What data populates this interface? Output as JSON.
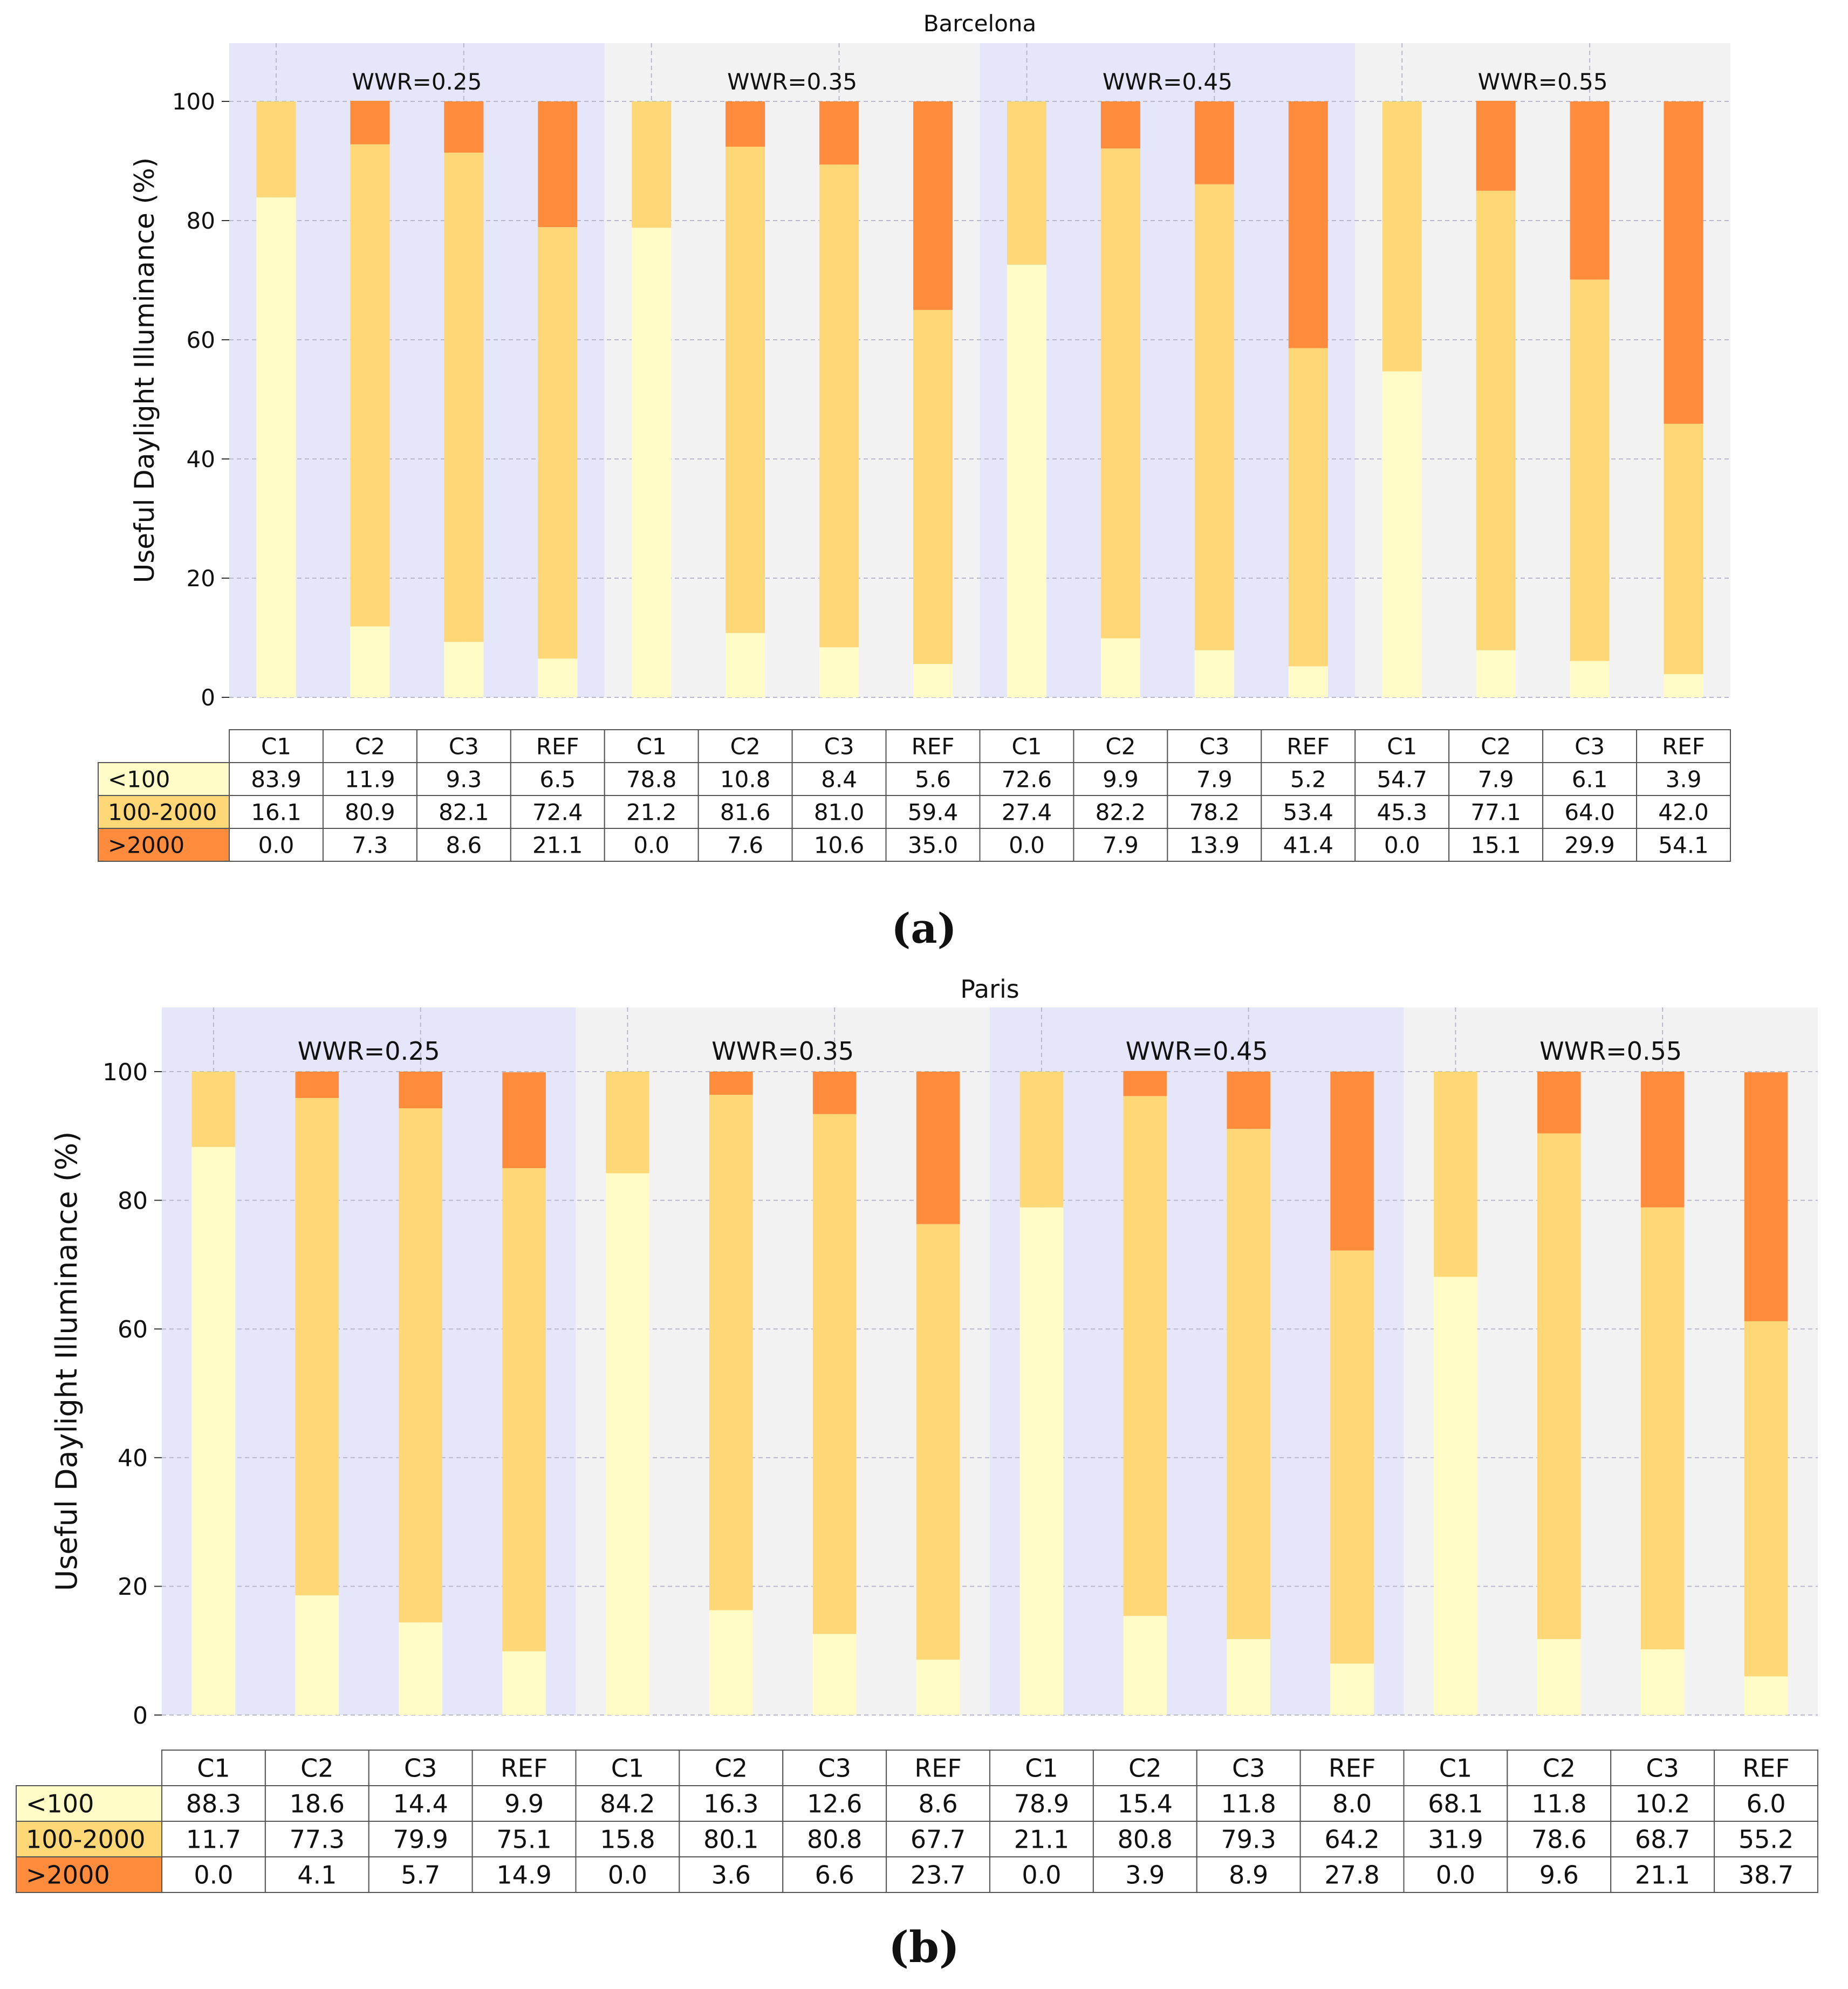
{
  "chart_data": [
    {
      "type": "bar",
      "stacked": true,
      "title": "Barcelona",
      "caption": "(a)",
      "ylabel": "Useful Daylight Illuminance (%)",
      "ylim": [
        0,
        110
      ],
      "yticks": [
        "0",
        "20",
        "40",
        "60",
        "80",
        "100"
      ],
      "grid": true,
      "groups": [
        "WWR=0.25",
        "WWR=0.35",
        "WWR=0.45",
        "WWR=0.55"
      ],
      "categories": [
        "C1",
        "C2",
        "C3",
        "REF",
        "C1",
        "C2",
        "C3",
        "REF",
        "C1",
        "C2",
        "C3",
        "REF",
        "C1",
        "C2",
        "C3",
        "REF"
      ],
      "series": [
        {
          "name": "<100",
          "color": "#fffcc8",
          "values": [
            83.9,
            11.9,
            9.3,
            6.5,
            78.8,
            10.8,
            8.4,
            5.6,
            72.6,
            9.9,
            7.9,
            5.2,
            54.7,
            7.9,
            6.1,
            3.9
          ],
          "labels": [
            "83.9",
            "11.9",
            "9.3",
            "6.5",
            "78.8",
            "10.8",
            "8.4",
            "5.6",
            "72.6",
            "9.9",
            "7.9",
            "5.2",
            "54.7",
            "7.9",
            "6.1",
            "3.9"
          ]
        },
        {
          "name": "100-2000",
          "color": "#fed776",
          "values": [
            16.1,
            80.9,
            82.1,
            72.4,
            21.2,
            81.6,
            81.0,
            59.4,
            27.4,
            82.2,
            78.2,
            53.4,
            45.3,
            77.1,
            64.0,
            42.0
          ],
          "labels": [
            "16.1",
            "80.9",
            "82.1",
            "72.4",
            "21.2",
            "81.6",
            "81.0",
            "59.4",
            "27.4",
            "82.2",
            "78.2",
            "53.4",
            "45.3",
            "77.1",
            "64.0",
            "42.0"
          ]
        },
        {
          "name": ">2000",
          "color": "#fe8c3c",
          "values": [
            0.0,
            7.3,
            8.6,
            21.1,
            0.0,
            7.6,
            10.6,
            35.0,
            0.0,
            7.9,
            13.9,
            41.4,
            0.0,
            15.1,
            29.9,
            54.1
          ],
          "labels": [
            "0.0",
            "7.3",
            "8.6",
            "21.1",
            "0.0",
            "7.6",
            "10.6",
            "35.0",
            "0.0",
            "7.9",
            "13.9",
            "41.4",
            "0.0",
            "15.1",
            "29.9",
            "54.1"
          ]
        }
      ]
    },
    {
      "type": "bar",
      "stacked": true,
      "title": "Paris",
      "caption": "(b)",
      "ylabel": "Useful Daylight Illuminance (%)",
      "ylim": [
        0,
        110
      ],
      "yticks": [
        "0",
        "20",
        "40",
        "60",
        "80",
        "100"
      ],
      "grid": true,
      "groups": [
        "WWR=0.25",
        "WWR=0.35",
        "WWR=0.45",
        "WWR=0.55"
      ],
      "categories": [
        "C1",
        "C2",
        "C3",
        "REF",
        "C1",
        "C2",
        "C3",
        "REF",
        "C1",
        "C2",
        "C3",
        "REF",
        "C1",
        "C2",
        "C3",
        "REF"
      ],
      "series": [
        {
          "name": "<100",
          "color": "#fffcc8",
          "values": [
            88.3,
            18.6,
            14.4,
            9.9,
            84.2,
            16.3,
            12.6,
            8.6,
            78.9,
            15.4,
            11.8,
            8.0,
            68.1,
            11.8,
            10.2,
            6.0
          ],
          "labels": [
            "88.3",
            "18.6",
            "14.4",
            "9.9",
            "84.2",
            "16.3",
            "12.6",
            "8.6",
            "78.9",
            "15.4",
            "11.8",
            "8.0",
            "68.1",
            "11.8",
            "10.2",
            "6.0"
          ]
        },
        {
          "name": "100-2000",
          "color": "#fed776",
          "values": [
            11.7,
            77.3,
            79.9,
            75.1,
            15.8,
            80.1,
            80.8,
            67.7,
            21.1,
            80.8,
            79.3,
            64.2,
            31.9,
            78.6,
            68.7,
            55.2
          ],
          "labels": [
            "11.7",
            "77.3",
            "79.9",
            "75.1",
            "15.8",
            "80.1",
            "80.8",
            "67.7",
            "21.1",
            "80.8",
            "79.3",
            "64.2",
            "31.9",
            "78.6",
            "68.7",
            "55.2"
          ]
        },
        {
          "name": ">2000",
          "color": "#fe8c3c",
          "values": [
            0.0,
            4.1,
            5.7,
            14.9,
            0.0,
            3.6,
            6.6,
            23.7,
            0.0,
            3.9,
            8.9,
            27.8,
            0.0,
            9.6,
            21.1,
            38.7
          ],
          "labels": [
            "0.0",
            "4.1",
            "5.7",
            "14.9",
            "0.0",
            "3.6",
            "6.6",
            "23.7",
            "0.0",
            "3.9",
            "8.9",
            "27.8",
            "0.0",
            "9.6",
            "21.1",
            "38.7"
          ]
        }
      ]
    }
  ],
  "colors": {
    "group_odd_bg": "#e6e6fa",
    "group_even_bg": "#f2f2f2",
    "grid": "#b8b8c8",
    "table_border": "#555555",
    "text": "#111111"
  }
}
